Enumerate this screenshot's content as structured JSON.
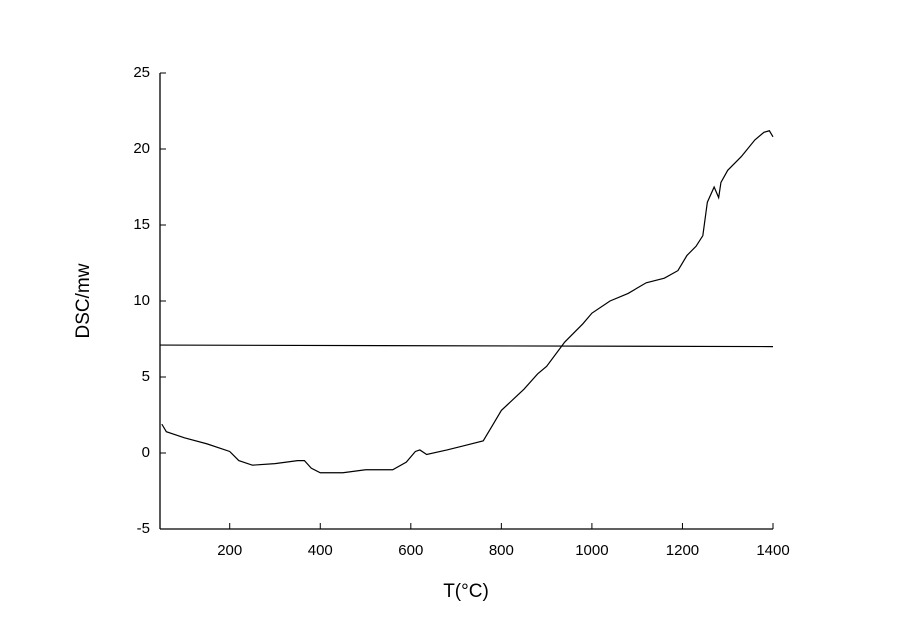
{
  "chart_data": {
    "type": "line",
    "x_label": "T(°C)",
    "y_label": "DSC/mw",
    "xlim": [
      46,
      1400
    ],
    "ylim": [
      -5,
      25
    ],
    "xticks": [
      200,
      400,
      600,
      800,
      1000,
      1200,
      1400
    ],
    "yticks": [
      -5,
      0,
      5,
      10,
      15,
      20,
      25
    ],
    "series": [
      {
        "color": "#000000",
        "x": [
          50,
          60,
          100,
          150,
          200,
          220,
          250,
          300,
          350,
          365,
          380,
          400,
          450,
          500,
          560,
          590,
          610,
          620,
          635,
          680,
          720,
          760,
          780,
          800,
          850,
          880,
          900,
          940,
          980,
          1000,
          1040,
          1080,
          1120,
          1160,
          1190,
          1210,
          1230,
          1245,
          1255,
          1270,
          1280,
          1285,
          1300,
          1330,
          1360,
          1380,
          1392,
          1400
        ],
        "values": [
          1.9,
          1.4,
          1.0,
          0.6,
          0.1,
          -0.5,
          -0.8,
          -0.7,
          -0.5,
          -0.5,
          -1.0,
          -1.3,
          -1.3,
          -1.1,
          -1.1,
          -0.6,
          0.1,
          0.2,
          -0.1,
          0.2,
          0.5,
          0.8,
          1.8,
          2.8,
          4.2,
          5.2,
          5.7,
          7.3,
          8.5,
          9.2,
          10.0,
          10.5,
          11.2,
          11.5,
          12.0,
          13.0,
          13.6,
          14.3,
          16.5,
          17.5,
          16.8,
          17.8,
          18.6,
          19.5,
          20.6,
          21.1,
          21.2,
          20.8
        ]
      },
      {
        "color": "#000000",
        "x": [
          46,
          1400
        ],
        "values": [
          7.1,
          7.0
        ]
      }
    ]
  }
}
